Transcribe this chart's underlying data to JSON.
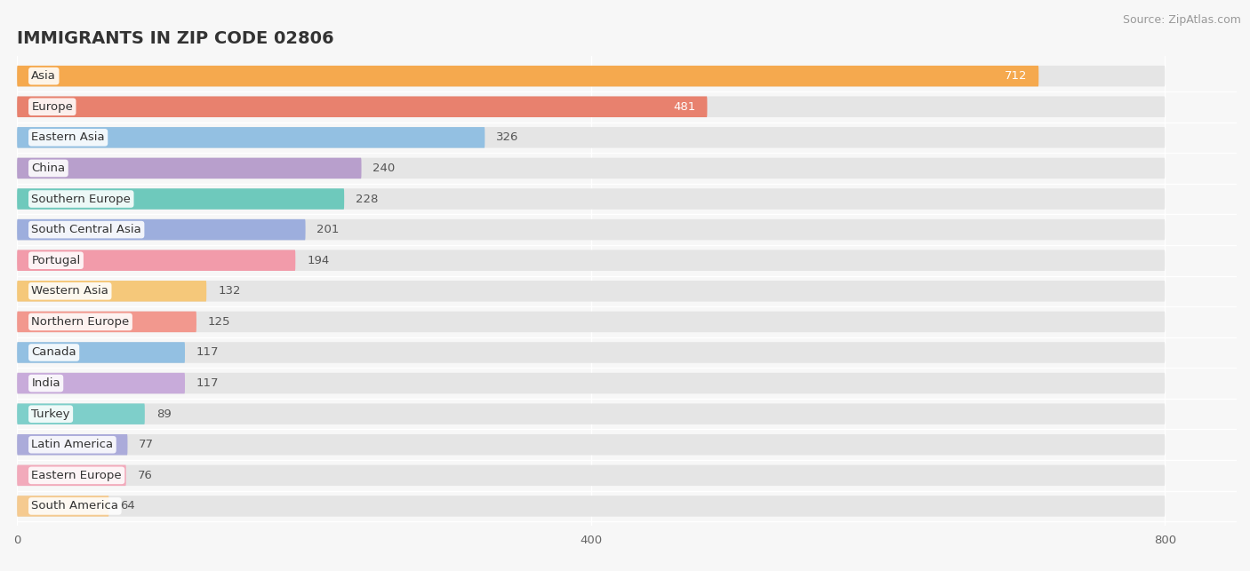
{
  "title": "IMMIGRANTS IN ZIP CODE 02806",
  "source": "Source: ZipAtlas.com",
  "categories": [
    "Asia",
    "Europe",
    "Eastern Asia",
    "China",
    "Southern Europe",
    "South Central Asia",
    "Portugal",
    "Western Asia",
    "Northern Europe",
    "Canada",
    "India",
    "Turkey",
    "Latin America",
    "Eastern Europe",
    "South America"
  ],
  "values": [
    712,
    481,
    326,
    240,
    228,
    201,
    194,
    132,
    125,
    117,
    117,
    89,
    77,
    76,
    64
  ],
  "bar_colors": [
    "#F5A94E",
    "#E8816E",
    "#93C0E2",
    "#B89FCC",
    "#6EC9BC",
    "#9DAEDD",
    "#F29BAA",
    "#F5C87A",
    "#F2988E",
    "#93C0E2",
    "#C8ABDA",
    "#7ECFCA",
    "#ABABDA",
    "#F2AABB",
    "#F5CA90"
  ],
  "xlim": [
    0,
    850
  ],
  "background_color": "#f7f7f7",
  "bar_bg_color": "#e5e5e5",
  "title_fontsize": 14,
  "label_fontsize": 9.5,
  "value_fontsize": 9.5,
  "source_fontsize": 9,
  "xticks": [
    0,
    400,
    800
  ],
  "bar_height": 0.68,
  "value_inside_threshold": 350
}
